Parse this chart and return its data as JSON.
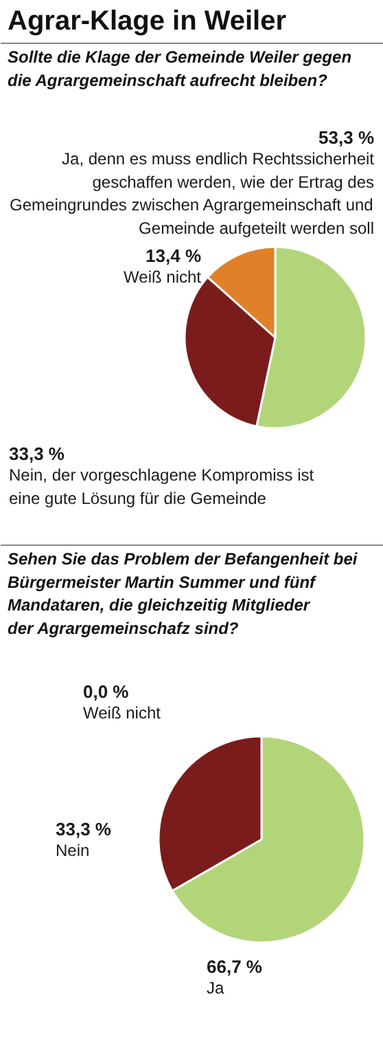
{
  "chart_data": [
    {
      "type": "pie",
      "title": "Agrar-Klage in Weiler",
      "subtitle": "Sollte die Klage der Gemeinde Weiler gegen die Agrargemeinschaft aufrecht bleiben?",
      "categories": [
        "Ja, denn es muss endlich Rechtssicherheit geschaffen werden, wie der Ertrag des Gemeingrundes zwischen Agrargemeinschaft und Gemeinde aufgeteilt werden soll",
        "Nein, der vorgeschlagene Kompromiss ist eine gute Lösung für die Gemeinde",
        "Weiß nicht"
      ],
      "values": [
        53.3,
        33.3,
        13.4
      ],
      "colors": [
        "#b3d57a",
        "#7b1c1c",
        "#e0812a"
      ],
      "value_labels": [
        "53,3 %",
        "33,3 %",
        "13,4 %"
      ]
    },
    {
      "type": "pie",
      "subtitle": "Sehen Sie das Problem der Befangenheit bei Bürgermeister Martin Summer und fünf Mandataren, die gleichzeitig Mitglieder der Agrargemeinschafz sind?",
      "categories": [
        "Ja",
        "Nein",
        "Weiß nicht"
      ],
      "values": [
        66.7,
        33.3,
        0.0
      ],
      "colors": [
        "#b3d57a",
        "#7b1c1c",
        "#e0812a"
      ],
      "value_labels": [
        "66,7 %",
        "33,3 %",
        "0,0 %"
      ]
    }
  ]
}
